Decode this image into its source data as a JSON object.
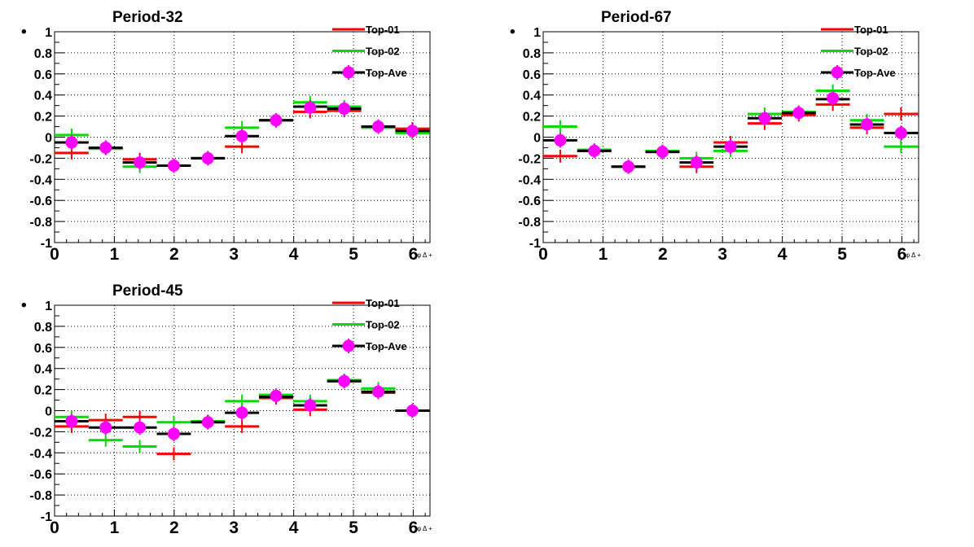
{
  "chart_data": [
    {
      "type": "scatter",
      "title": "Period-32",
      "ylabel": "•",
      "xlabel": "φ",
      "x_unit_label": "φ Δ +",
      "xlim": [
        0,
        6.28
      ],
      "ylim": [
        -1,
        1
      ],
      "x_ticks": [
        "0",
        "1",
        "2",
        "3",
        "4",
        "5",
        "6"
      ],
      "y_ticks": [
        "-1",
        "-0.8",
        "-0.6",
        "-0.4",
        "-0.2",
        "0",
        "0.2",
        "0.4",
        "0.6",
        "0.8",
        "1"
      ],
      "grid": true,
      "legend_position": "top-right",
      "series": [
        {
          "name": "Top-01",
          "color": "#ff0000",
          "marker": "cross",
          "x": [
            0.285,
            0.855,
            1.425,
            1.995,
            2.565,
            3.135,
            3.705,
            4.275,
            4.845,
            5.415,
            5.985
          ],
          "y": [
            -0.15,
            -0.1,
            -0.21,
            -0.27,
            -0.2,
            -0.09,
            0.16,
            0.24,
            0.25,
            0.1,
            0.08
          ]
        },
        {
          "name": "Top-02",
          "color": "#00dd00",
          "marker": "cross",
          "x": [
            0.285,
            0.855,
            1.425,
            1.995,
            2.565,
            3.135,
            3.705,
            4.275,
            4.845,
            5.415,
            5.985
          ],
          "y": [
            0.02,
            -0.11,
            -0.28,
            -0.27,
            -0.2,
            0.09,
            0.16,
            0.33,
            0.29,
            0.09,
            0.04
          ]
        },
        {
          "name": "",
          "color": "#000000",
          "marker": "cross",
          "x": [
            0.285,
            0.855,
            1.425,
            1.995,
            2.565,
            3.135,
            3.705,
            4.275,
            4.845,
            5.415,
            5.985
          ],
          "y": [
            -0.05,
            -0.1,
            -0.24,
            -0.27,
            -0.2,
            0.01,
            0.16,
            0.29,
            0.27,
            0.1,
            0.06
          ]
        },
        {
          "name": "Top-Ave",
          "color": "#ff00ff",
          "marker": "circle",
          "x": [
            0.285,
            0.855,
            1.425,
            1.995,
            2.565,
            3.135,
            3.705,
            4.275,
            4.845,
            5.415,
            5.985
          ],
          "y": [
            -0.05,
            -0.1,
            -0.24,
            -0.27,
            -0.2,
            0.01,
            0.16,
            0.28,
            0.27,
            0.1,
            0.06
          ]
        }
      ]
    },
    {
      "type": "scatter",
      "title": "Period-67",
      "ylabel": "•",
      "xlabel": "φ",
      "x_unit_label": "φ Δ +",
      "xlim": [
        0,
        6.28
      ],
      "ylim": [
        -1,
        1
      ],
      "x_ticks": [
        "0",
        "1",
        "2",
        "3",
        "4",
        "5",
        "6"
      ],
      "y_ticks": [
        "-1",
        "-0.8",
        "-0.6",
        "-0.4",
        "-0.2",
        "0",
        "0.2",
        "0.4",
        "0.6",
        "0.8",
        "1"
      ],
      "grid": true,
      "legend_position": "top-right",
      "series": [
        {
          "name": "Top-01",
          "color": "#ff0000",
          "marker": "cross",
          "x": [
            0.285,
            0.855,
            1.425,
            1.995,
            2.565,
            3.135,
            3.705,
            4.275,
            4.845,
            5.415,
            5.985
          ],
          "y": [
            -0.18,
            -0.13,
            -0.28,
            -0.14,
            -0.28,
            -0.05,
            0.13,
            0.21,
            0.31,
            0.09,
            0.22
          ]
        },
        {
          "name": "Top-02",
          "color": "#00dd00",
          "marker": "cross",
          "x": [
            0.285,
            0.855,
            1.425,
            1.995,
            2.565,
            3.135,
            3.705,
            4.275,
            4.845,
            5.415,
            5.985
          ],
          "y": [
            0.1,
            -0.12,
            -0.28,
            -0.13,
            -0.2,
            -0.13,
            0.22,
            0.24,
            0.44,
            0.16,
            -0.09
          ]
        },
        {
          "name": "",
          "color": "#000000",
          "marker": "cross",
          "x": [
            0.285,
            0.855,
            1.425,
            1.995,
            2.565,
            3.135,
            3.705,
            4.275,
            4.845,
            5.415,
            5.985
          ],
          "y": [
            -0.03,
            -0.13,
            -0.28,
            -0.14,
            -0.24,
            -0.09,
            0.18,
            0.23,
            0.36,
            0.12,
            0.04
          ]
        },
        {
          "name": "Top-Ave",
          "color": "#ff00ff",
          "marker": "circle",
          "x": [
            0.285,
            0.855,
            1.425,
            1.995,
            2.565,
            3.135,
            3.705,
            4.275,
            4.845,
            5.415,
            5.985
          ],
          "y": [
            -0.03,
            -0.13,
            -0.28,
            -0.14,
            -0.24,
            -0.09,
            0.18,
            0.23,
            0.37,
            0.12,
            0.04
          ]
        }
      ]
    },
    {
      "type": "scatter",
      "title": "Period-45",
      "ylabel": "•",
      "xlabel": "φ",
      "x_unit_label": "φ Δ +",
      "xlim": [
        0,
        6.28
      ],
      "ylim": [
        -1,
        1
      ],
      "x_ticks": [
        "0",
        "1",
        "2",
        "3",
        "4",
        "5",
        "6"
      ],
      "y_ticks": [
        "-1",
        "-0.8",
        "-0.6",
        "-0.4",
        "-0.2",
        "0",
        "0.2",
        "0.4",
        "0.6",
        "0.8",
        "1"
      ],
      "grid": true,
      "legend_position": "top-right",
      "series": [
        {
          "name": "Top-01",
          "color": "#ff0000",
          "marker": "cross",
          "x": [
            0.285,
            0.855,
            1.425,
            1.995,
            2.565,
            3.135,
            3.705,
            4.275,
            4.845,
            5.415,
            5.985
          ],
          "y": [
            -0.15,
            -0.09,
            -0.06,
            -0.41,
            -0.1,
            -0.15,
            0.12,
            0.01,
            0.28,
            0.17,
            0.0
          ]
        },
        {
          "name": "Top-02",
          "color": "#00dd00",
          "marker": "cross",
          "x": [
            0.285,
            0.855,
            1.425,
            1.995,
            2.565,
            3.135,
            3.705,
            4.275,
            4.845,
            5.415,
            5.985
          ],
          "y": [
            -0.06,
            -0.28,
            -0.34,
            -0.11,
            -0.1,
            0.09,
            0.15,
            0.09,
            0.29,
            0.21,
            0.0
          ]
        },
        {
          "name": "",
          "color": "#000000",
          "marker": "cross",
          "x": [
            0.285,
            0.855,
            1.425,
            1.995,
            2.565,
            3.135,
            3.705,
            4.275,
            4.845,
            5.415,
            5.985
          ],
          "y": [
            -0.1,
            -0.16,
            -0.16,
            -0.22,
            -0.11,
            -0.02,
            0.13,
            0.05,
            0.28,
            0.18,
            0.0
          ]
        },
        {
          "name": "Top-Ave",
          "color": "#ff00ff",
          "marker": "circle",
          "x": [
            0.285,
            0.855,
            1.425,
            1.995,
            2.565,
            3.135,
            3.705,
            4.275,
            4.845,
            5.415,
            5.985
          ],
          "y": [
            -0.1,
            -0.16,
            -0.16,
            -0.22,
            -0.11,
            -0.02,
            0.14,
            0.05,
            0.28,
            0.18,
            0.0
          ]
        }
      ]
    }
  ]
}
